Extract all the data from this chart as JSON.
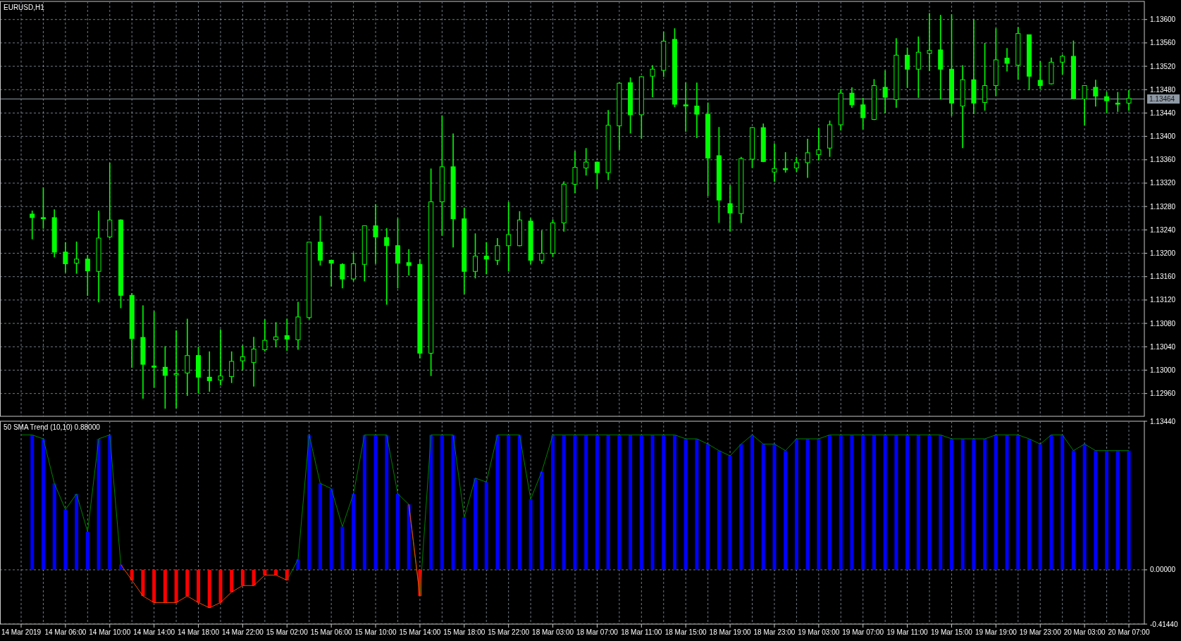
{
  "chart_data": [
    {
      "type": "candlestick",
      "title": "EURUSD,H1",
      "color": "#00ff00",
      "grid": true,
      "tick_labels": "y",
      "categories": [
        null,
        null,
        null,
        null,
        null,
        null,
        null,
        null,
        null,
        null,
        null,
        null,
        null,
        null,
        null,
        null,
        null,
        null,
        null,
        null,
        null,
        null,
        null,
        null,
        null,
        null,
        null,
        null,
        null,
        null,
        null,
        null,
        null,
        null,
        null,
        null,
        null,
        null,
        null,
        null,
        null,
        null,
        null,
        null,
        null,
        null,
        null,
        null,
        null,
        null,
        null,
        null,
        null,
        null,
        null,
        null,
        null,
        null,
        null,
        null,
        null,
        null,
        null,
        null,
        null,
        null,
        null,
        null,
        null,
        null,
        null,
        null,
        null,
        null,
        null,
        null,
        null,
        null,
        null,
        null,
        null,
        null,
        null,
        null,
        null,
        null,
        null,
        null,
        null,
        null,
        null,
        null,
        null,
        null,
        null,
        null,
        null,
        null,
        null,
        null,
        null
      ],
      "ohlc": [
        null,
        [
          1.13267,
          1.13273,
          1.13224,
          1.13261
        ],
        [
          1.13261,
          1.13313,
          1.13242,
          1.13261
        ],
        [
          1.13261,
          1.13275,
          1.13193,
          1.13202
        ],
        [
          1.13202,
          1.13219,
          1.13167,
          1.13182
        ],
        [
          1.13183,
          1.1322,
          1.13165,
          1.1319
        ],
        [
          1.1319,
          1.13197,
          1.13127,
          1.1317
        ],
        [
          1.13169,
          1.13273,
          1.13116,
          1.13226
        ],
        [
          1.13228,
          1.13355,
          1.13226,
          1.13257
        ],
        [
          1.13257,
          1.13258,
          1.13106,
          1.13128
        ],
        [
          1.13128,
          1.13132,
          1.13004,
          1.13054
        ],
        [
          1.13056,
          1.13111,
          1.12951,
          1.1301
        ],
        [
          1.13007,
          1.13101,
          1.1297,
          1.13005
        ],
        [
          1.13005,
          1.13041,
          1.12934,
          1.12991
        ],
        [
          1.12992,
          1.13068,
          1.12935,
          1.12994
        ],
        [
          1.12995,
          1.13088,
          1.12956,
          1.13025
        ],
        [
          1.13025,
          1.1304,
          1.1296,
          1.12988
        ],
        [
          1.12988,
          1.13032,
          1.12963,
          1.12982
        ],
        [
          1.12983,
          1.1307,
          1.12974,
          1.1299
        ],
        [
          1.12989,
          1.13032,
          1.12978,
          1.13015
        ],
        [
          1.13016,
          1.13043,
          1.13,
          1.13023
        ],
        [
          1.13013,
          1.13057,
          1.12972,
          1.13036
        ],
        [
          1.13035,
          1.13087,
          1.13032,
          1.13051
        ],
        [
          1.13052,
          1.13082,
          1.13039,
          1.13057
        ],
        [
          1.13059,
          1.13088,
          1.13033,
          1.13053
        ],
        [
          1.13052,
          1.13117,
          1.13035,
          1.13091
        ],
        [
          1.1309,
          1.13219,
          1.13087,
          1.13219
        ],
        [
          1.13219,
          1.13264,
          1.13179,
          1.13188
        ],
        [
          1.13188,
          1.13188,
          1.13143,
          1.13183
        ],
        [
          1.13181,
          1.13183,
          1.1314,
          1.13156
        ],
        [
          1.13156,
          1.13201,
          1.13152,
          1.13182
        ],
        [
          1.13181,
          1.13247,
          1.13152,
          1.13247
        ],
        [
          1.13247,
          1.13284,
          1.13182,
          1.13228
        ],
        [
          1.13227,
          1.13243,
          1.13112,
          1.13213
        ],
        [
          1.13213,
          1.1326,
          1.1314,
          1.13183
        ],
        [
          1.13184,
          1.13207,
          1.13162,
          1.13179
        ],
        [
          1.13181,
          1.1319,
          1.1302,
          1.13029
        ],
        [
          1.13029,
          1.13345,
          1.1299,
          1.13288
        ],
        [
          1.13288,
          1.13436,
          1.1323,
          1.13348
        ],
        [
          1.13348,
          1.13405,
          1.1321,
          1.13259
        ],
        [
          1.13259,
          1.13278,
          1.1313,
          1.13169
        ],
        [
          1.13169,
          1.13234,
          1.13157,
          1.13195
        ],
        [
          1.13195,
          1.13219,
          1.13164,
          1.1319
        ],
        [
          1.13188,
          1.13226,
          1.1318,
          1.13213
        ],
        [
          1.13213,
          1.13288,
          1.13169,
          1.13232
        ],
        [
          1.13213,
          1.13272,
          1.13212,
          1.13257
        ],
        [
          1.13255,
          1.1326,
          1.13181,
          1.13188
        ],
        [
          1.13188,
          1.13239,
          1.13182,
          1.132
        ],
        [
          1.132,
          1.13258,
          1.13194,
          1.13252
        ],
        [
          1.13252,
          1.13323,
          1.13237,
          1.13318
        ],
        [
          1.13318,
          1.13375,
          1.13303,
          1.13347
        ],
        [
          1.13346,
          1.1338,
          1.13333,
          1.13356
        ],
        [
          1.13356,
          1.13357,
          1.1331,
          1.13338
        ],
        [
          1.13338,
          1.13445,
          1.13325,
          1.13419
        ],
        [
          1.13418,
          1.13492,
          1.13377,
          1.13491
        ],
        [
          1.13492,
          1.13501,
          1.13405,
          1.13437
        ],
        [
          1.13437,
          1.13503,
          1.13396,
          1.13502
        ],
        [
          1.13503,
          1.13522,
          1.13467,
          1.13515
        ],
        [
          1.13513,
          1.13579,
          1.13502,
          1.13563
        ],
        [
          1.13566,
          1.13585,
          1.1345,
          1.13455
        ],
        [
          1.13454,
          1.13492,
          1.13408,
          1.13452
        ],
        [
          1.13452,
          1.13492,
          1.13397,
          1.13438
        ],
        [
          1.13438,
          1.13458,
          1.13298,
          1.13363
        ],
        [
          1.13367,
          1.13416,
          1.13252,
          1.13291
        ],
        [
          1.13285,
          1.13317,
          1.13237,
          1.13269
        ],
        [
          1.13268,
          1.13365,
          1.13252,
          1.13362
        ],
        [
          1.13361,
          1.13416,
          1.13346,
          1.13415
        ],
        [
          1.13415,
          1.13422,
          1.13356,
          1.13357
        ],
        [
          1.13339,
          1.13388,
          1.13322,
          1.13345
        ],
        [
          1.13345,
          1.13373,
          1.13338,
          1.13343
        ],
        [
          1.13346,
          1.13365,
          1.13339,
          1.13355
        ],
        [
          1.13355,
          1.13396,
          1.13329,
          1.13372
        ],
        [
          1.13369,
          1.13415,
          1.13359,
          1.13377
        ],
        [
          1.1338,
          1.13427,
          1.13365,
          1.1342
        ],
        [
          1.1342,
          1.13481,
          1.1341,
          1.13474
        ],
        [
          1.13474,
          1.13484,
          1.13449,
          1.13454
        ],
        [
          1.13454,
          1.13466,
          1.13412,
          1.13432
        ],
        [
          1.13429,
          1.13498,
          1.13428,
          1.13487
        ],
        [
          1.13484,
          1.13513,
          1.1344,
          1.13467
        ],
        [
          1.13463,
          1.13568,
          1.13449,
          1.13539
        ],
        [
          1.13539,
          1.13552,
          1.13483,
          1.13515
        ],
        [
          1.13515,
          1.13571,
          1.13466,
          1.13544
        ],
        [
          1.13542,
          1.13611,
          1.13512,
          1.13547
        ],
        [
          1.13548,
          1.13608,
          1.13463,
          1.13515
        ],
        [
          1.13515,
          1.13609,
          1.13435,
          1.13457
        ],
        [
          1.13452,
          1.13522,
          1.1338,
          1.13497
        ],
        [
          1.13497,
          1.136,
          1.13438,
          1.13457
        ],
        [
          1.13458,
          1.1356,
          1.13444,
          1.13487
        ],
        [
          1.13487,
          1.13585,
          1.13469,
          1.13531
        ],
        [
          1.13534,
          1.13551,
          1.13511,
          1.13525
        ],
        [
          1.13522,
          1.13587,
          1.13497,
          1.13576
        ],
        [
          1.13574,
          1.13574,
          1.13479,
          1.13503
        ],
        [
          1.13496,
          1.13529,
          1.13481,
          1.13487
        ],
        [
          1.1349,
          1.13535,
          1.13489,
          1.13527
        ],
        [
          1.13527,
          1.1354,
          1.13506,
          1.13537
        ],
        [
          1.13537,
          1.13564,
          1.13465,
          1.13465
        ],
        [
          1.13464,
          1.13487,
          1.13419,
          1.13487
        ],
        [
          1.13484,
          1.13497,
          1.13451,
          1.13469
        ],
        [
          1.13468,
          1.13476,
          1.1344,
          1.13461
        ],
        [
          1.13457,
          1.13476,
          1.13442,
          1.13457
        ],
        [
          1.13457,
          1.13479,
          1.13444,
          1.13465
        ]
      ],
      "ylim": [
        1.12921,
        1.13631
      ],
      "yticks": [
        {
          "value": 1.1296,
          "label": "1.12960"
        },
        {
          "value": 1.13,
          "label": "1.13000"
        },
        {
          "value": 1.1304,
          "label": "1.13040"
        },
        {
          "value": 1.1308,
          "label": "1.13080"
        },
        {
          "value": 1.1312,
          "label": "1.13120"
        },
        {
          "value": 1.1316,
          "label": "1.13160"
        },
        {
          "value": 1.132,
          "label": "1.13200"
        },
        {
          "value": 1.1324,
          "label": "1.13240"
        },
        {
          "value": 1.1328,
          "label": "1.13280"
        },
        {
          "value": 1.1332,
          "label": "1.13320"
        },
        {
          "value": 1.1336,
          "label": "1.13360"
        },
        {
          "value": 1.134,
          "label": "1.13400"
        },
        {
          "value": 1.1344,
          "label": "1.13440"
        },
        {
          "value": 1.1348,
          "label": "1.13480"
        },
        {
          "value": 1.1352,
          "label": "1.13520"
        },
        {
          "value": 1.1356,
          "label": "1.13560"
        },
        {
          "value": 1.136,
          "label": "1.13600"
        }
      ],
      "ref_lines": [
        {
          "axis": "y",
          "value": 1.13464,
          "label": "1.13464",
          "color": "#8f9aa6"
        }
      ]
    },
    {
      "type": "bar",
      "title": "50 SMA Trend (10,10) 0.88000",
      "grid": true,
      "categories": [
        "14 Mar 2019",
        null,
        null,
        null,
        "14 Mar 06:00",
        null,
        null,
        null,
        "14 Mar 10:00",
        null,
        null,
        null,
        "14 Mar 14:00",
        null,
        null,
        null,
        "14 Mar 18:00",
        null,
        null,
        null,
        "14 Mar 22:00",
        null,
        null,
        null,
        "15 Mar 02:00",
        null,
        null,
        null,
        "15 Mar 06:00",
        null,
        null,
        null,
        "15 Mar 10:00",
        null,
        null,
        null,
        "15 Mar 14:00",
        null,
        null,
        null,
        "15 Mar 18:00",
        null,
        null,
        null,
        "15 Mar 22:00",
        null,
        null,
        null,
        "18 Mar 03:00",
        null,
        null,
        null,
        "18 Mar 07:00",
        null,
        null,
        null,
        "18 Mar 11:00",
        null,
        null,
        null,
        "18 Mar 15:00",
        null,
        null,
        null,
        "18 Mar 19:00",
        null,
        null,
        null,
        "18 Mar 23:00",
        null,
        null,
        null,
        "19 Mar 03:00",
        null,
        null,
        null,
        "19 Mar 07:00",
        null,
        null,
        null,
        "19 Mar 11:00",
        null,
        null,
        null,
        "19 Mar 15:00",
        null,
        null,
        null,
        "19 Mar 19:00",
        null,
        null,
        null,
        "19 Mar 23:00",
        null,
        null,
        null,
        "20 Mar 03:00",
        null,
        null,
        null,
        "20 Mar 07:00"
      ],
      "series": [
        {
          "values": [
            null,
            1.03,
            1.0,
            0.66,
            0.46,
            0.58,
            0.29,
            1.0,
            1.03,
            0.04,
            -0.08,
            -0.2,
            -0.25,
            -0.25,
            -0.25,
            -0.2,
            -0.25,
            -0.29,
            -0.25,
            -0.17,
            -0.12,
            -0.12,
            -0.04,
            -0.04,
            -0.08,
            0.08,
            1.03,
            0.66,
            0.62,
            0.33,
            0.58,
            1.03,
            1.03,
            1.03,
            0.58,
            0.5,
            -0.2,
            1.03,
            1.03,
            1.03,
            0.4,
            0.7,
            0.67,
            1.03,
            1.03,
            1.03,
            0.54,
            0.75,
            1.03,
            1.03,
            1.03,
            1.03,
            1.03,
            1.03,
            1.03,
            1.03,
            1.03,
            1.03,
            1.03,
            1.03,
            1.0,
            1.0,
            0.96,
            0.91,
            0.87,
            0.96,
            1.03,
            0.96,
            0.96,
            0.91,
            1.0,
            1.0,
            1.0,
            1.03,
            1.03,
            1.03,
            1.03,
            1.03,
            1.03,
            1.03,
            1.03,
            1.03,
            1.03,
            1.03,
            1.0,
            1.0,
            1.0,
            1.0,
            1.03,
            1.03,
            1.03,
            1.0,
            0.96,
            1.03,
            1.03,
            0.91,
            0.96,
            0.91,
            0.91,
            0.91,
            0.91
          ],
          "colors": [
            null,
            "#0000ff",
            "#0000ff",
            "#0000ff",
            "#0000ff",
            "#0000ff",
            "#0000ff",
            "#0000ff",
            "#0000ff",
            "#0000ff",
            "#ff0000",
            "#ff0000",
            "#ff0000",
            "#ff0000",
            "#ff0000",
            "#ff0000",
            "#ff0000",
            "#ff0000",
            "#ff0000",
            "#ff0000",
            "#ff0000",
            "#ff0000",
            "#ff0000",
            "#ff0000",
            "#ff0000",
            "#0000ff",
            "#0000ff",
            "#0000ff",
            "#0000ff",
            "#0000ff",
            "#0000ff",
            "#0000ff",
            "#0000ff",
            "#0000ff",
            "#0000ff",
            "#0000ff",
            "#ff0000",
            "#0000ff",
            "#0000ff",
            "#0000ff",
            "#0000ff",
            "#0000ff",
            "#0000ff",
            "#0000ff",
            "#0000ff",
            "#0000ff",
            "#0000ff",
            "#0000ff",
            "#0000ff",
            "#0000ff",
            "#0000ff",
            "#0000ff",
            "#0000ff",
            "#0000ff",
            "#0000ff",
            "#0000ff",
            "#0000ff",
            "#0000ff",
            "#0000ff",
            "#0000ff",
            "#0000ff",
            "#0000ff",
            "#0000ff",
            "#0000ff",
            "#0000ff",
            "#0000ff",
            "#0000ff",
            "#0000ff",
            "#0000ff",
            "#0000ff",
            "#0000ff",
            "#0000ff",
            "#0000ff",
            "#0000ff",
            "#0000ff",
            "#0000ff",
            "#0000ff",
            "#0000ff",
            "#0000ff",
            "#0000ff",
            "#0000ff",
            "#0000ff",
            "#0000ff",
            "#0000ff",
            "#0000ff",
            "#0000ff",
            "#0000ff",
            "#0000ff",
            "#0000ff",
            "#0000ff",
            "#0000ff",
            "#0000ff",
            "#0000ff",
            "#0000ff",
            "#0000ff",
            "#0000ff",
            "#0000ff",
            "#0000ff",
            "#0000ff",
            "#0000ff",
            "#0000ff"
          ]
        },
        {
          "type": "line",
          "color": "#008000",
          "values": [
            1.03,
            1.03,
            1.0,
            0.66,
            0.46,
            0.58,
            0.29,
            1.0,
            1.03,
            0.04,
            null,
            null,
            null,
            null,
            null,
            null,
            null,
            null,
            null,
            null,
            null,
            null,
            null,
            null,
            -0.08,
            0.08,
            1.03,
            0.66,
            0.62,
            0.33,
            0.58,
            1.03,
            1.03,
            1.03,
            0.58,
            0.5,
            -0.2,
            1.03,
            1.03,
            1.03,
            0.4,
            0.7,
            0.67,
            1.03,
            1.03,
            1.03,
            0.54,
            0.75,
            1.03,
            1.03,
            1.03,
            1.03,
            1.03,
            1.03,
            1.03,
            1.03,
            1.03,
            1.03,
            1.03,
            1.03,
            1.0,
            1.0,
            0.96,
            0.91,
            0.87,
            0.96,
            1.03,
            0.96,
            0.96,
            0.91,
            1.0,
            1.0,
            1.0,
            1.03,
            1.03,
            1.03,
            1.03,
            1.03,
            1.03,
            1.03,
            1.03,
            1.03,
            1.03,
            1.03,
            1.0,
            1.0,
            1.0,
            1.0,
            1.03,
            1.03,
            1.03,
            1.0,
            0.96,
            1.03,
            1.03,
            0.91,
            0.96,
            0.91,
            0.91,
            0.91,
            0.91
          ]
        },
        {
          "type": "line",
          "color": "#ff4500",
          "values": [
            null,
            null,
            null,
            null,
            null,
            null,
            null,
            null,
            null,
            0.04,
            -0.08,
            -0.2,
            -0.25,
            -0.25,
            -0.25,
            -0.2,
            -0.25,
            -0.29,
            -0.25,
            -0.17,
            -0.12,
            -0.12,
            -0.04,
            -0.04,
            -0.08,
            null,
            null,
            null,
            null,
            null,
            null,
            null,
            null,
            null,
            null,
            0.5,
            -0.2,
            null,
            null,
            null,
            null,
            null,
            null,
            null,
            null,
            null,
            null,
            null,
            null,
            null,
            null,
            null,
            null,
            null,
            null,
            null,
            null,
            null,
            null,
            null,
            null,
            null,
            null,
            null,
            null,
            null,
            null,
            null,
            null,
            null,
            null,
            null,
            null,
            null,
            null,
            null,
            null,
            null,
            null,
            null,
            null,
            null,
            null,
            null,
            null,
            null,
            null,
            null,
            null,
            null,
            null,
            null,
            null,
            null,
            null,
            null,
            null,
            null,
            null,
            null,
            null
          ]
        }
      ],
      "ylim": [
        -0.4144,
        1.1344
      ],
      "yticks": [
        {
          "value": 1.1344,
          "label": "1.13440"
        },
        {
          "value": 0,
          "label": "0.00000"
        },
        {
          "value": -0.4144,
          "label": "-0.41440"
        }
      ]
    }
  ]
}
